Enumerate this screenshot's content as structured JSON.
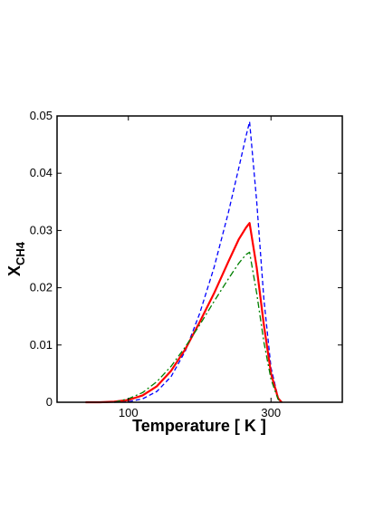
{
  "chart_data": {
    "type": "line",
    "title": "",
    "xlabel": "Temperature [ K ]",
    "ylabel_main": "X",
    "ylabel_sub": "CH4",
    "xlim": [
      0,
      400
    ],
    "ylim": [
      0,
      0.05
    ],
    "xticks": [
      {
        "value": 100,
        "label": "100"
      },
      {
        "value": 300,
        "label": "300"
      }
    ],
    "yticks": [
      {
        "value": 0,
        "label": "0"
      },
      {
        "value": 0.01,
        "label": "0.01"
      },
      {
        "value": 0.02,
        "label": "0.02"
      },
      {
        "value": 0.03,
        "label": "0.03"
      },
      {
        "value": 0.04,
        "label": "0.04"
      },
      {
        "value": 0.05,
        "label": "0.05"
      }
    ],
    "grid": false,
    "legend": "none",
    "series": [
      {
        "color": "#0000ff",
        "style": "dashed",
        "x": [
          80,
          100,
          120,
          140,
          160,
          180,
          200,
          220,
          240,
          255,
          265,
          270,
          280,
          290,
          300,
          310,
          315
        ],
        "values": [
          0,
          0.0001,
          0.0006,
          0.0019,
          0.0045,
          0.009,
          0.0155,
          0.0235,
          0.033,
          0.041,
          0.0465,
          0.049,
          0.035,
          0.018,
          0.006,
          0.0008,
          0
        ]
      },
      {
        "color": "#ff0000",
        "style": "solid",
        "x": [
          40,
          60,
          80,
          100,
          120,
          140,
          160,
          180,
          200,
          220,
          240,
          255,
          265,
          270,
          280,
          290,
          300,
          310,
          315
        ],
        "values": [
          0,
          0,
          0.0001,
          0.0004,
          0.0012,
          0.0028,
          0.0055,
          0.0093,
          0.014,
          0.019,
          0.0245,
          0.0285,
          0.0305,
          0.0313,
          0.0235,
          0.0135,
          0.005,
          0.0007,
          0
        ]
      },
      {
        "color": "#007f00",
        "style": "dashdot",
        "x": [
          80,
          100,
          120,
          140,
          160,
          180,
          200,
          220,
          240,
          255,
          265,
          270,
          280,
          290,
          300,
          310,
          315
        ],
        "values": [
          0,
          0.0006,
          0.0017,
          0.0036,
          0.0063,
          0.0097,
          0.0135,
          0.0176,
          0.0215,
          0.0243,
          0.0258,
          0.0262,
          0.019,
          0.0105,
          0.004,
          0.0005,
          0
        ]
      }
    ]
  }
}
